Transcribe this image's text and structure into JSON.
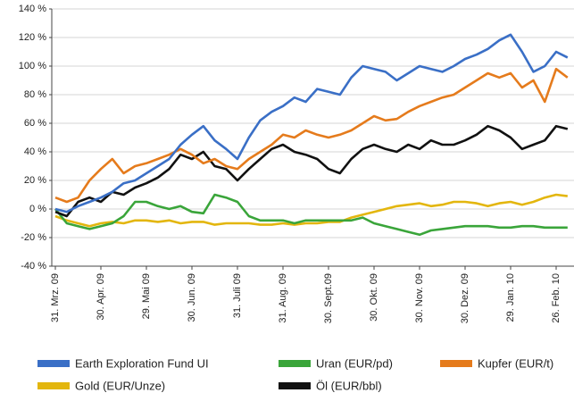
{
  "chart_data": {
    "type": "line",
    "categories": [
      "31. Mrz. 09",
      null,
      null,
      null,
      "30. Apr. 09",
      null,
      null,
      null,
      "29. Mai 09",
      null,
      null,
      null,
      "30. Jun. 09",
      null,
      null,
      null,
      "31. Juli 09",
      null,
      null,
      null,
      "31. Aug. 09",
      null,
      null,
      null,
      "30. Sept.09",
      null,
      null,
      null,
      "30. Okt. 09",
      null,
      null,
      null,
      "30. Nov. 09",
      null,
      null,
      null,
      "30. Dez. 09",
      null,
      null,
      null,
      "29. Jan. 10",
      null,
      null,
      null,
      "26. Feb. 10",
      null
    ],
    "series": [
      {
        "name": "Gold (EUR/Unze)",
        "color": "#e3b60e",
        "values": [
          -5,
          -8,
          -10,
          -12,
          -10,
          -9,
          -10,
          -8,
          -8,
          -9,
          -8,
          -10,
          -9,
          -9,
          -11,
          -10,
          -10,
          -10,
          -11,
          -11,
          -10,
          -11,
          -10,
          -10,
          -9,
          -9,
          -6,
          -4,
          -2,
          0,
          2,
          3,
          4,
          2,
          3,
          5,
          5,
          4,
          2,
          4,
          5,
          3,
          5,
          8,
          10,
          9
        ]
      },
      {
        "name": "Uran (EUR/pd)",
        "color": "#3aa53a",
        "values": [
          0,
          -10,
          -12,
          -14,
          -12,
          -10,
          -5,
          5,
          5,
          2,
          0,
          2,
          -2,
          -3,
          10,
          8,
          5,
          -5,
          -8,
          -8,
          -8,
          -10,
          -8,
          -8,
          -8,
          -8,
          -8,
          -6,
          -10,
          -12,
          -14,
          -16,
          -18,
          -15,
          -14,
          -13,
          -12,
          -12,
          -12,
          -13,
          -13,
          -12,
          -12,
          -13,
          -13,
          -13
        ]
      },
      {
        "name": "Öl (EUR/bbl)",
        "color": "#111111",
        "values": [
          -2,
          -5,
          5,
          8,
          5,
          12,
          10,
          15,
          18,
          22,
          28,
          38,
          35,
          40,
          30,
          28,
          20,
          28,
          35,
          42,
          45,
          40,
          38,
          35,
          28,
          25,
          35,
          42,
          45,
          42,
          40,
          45,
          42,
          48,
          45,
          45,
          48,
          52,
          58,
          55,
          50,
          42,
          45,
          48,
          58,
          56
        ]
      },
      {
        "name": "Kupfer (EUR/t)",
        "color": "#e57b1c",
        "values": [
          8,
          5,
          8,
          20,
          28,
          35,
          25,
          30,
          32,
          35,
          38,
          42,
          38,
          32,
          35,
          30,
          28,
          35,
          40,
          45,
          52,
          50,
          55,
          52,
          50,
          52,
          55,
          60,
          65,
          62,
          63,
          68,
          72,
          75,
          78,
          80,
          85,
          90,
          95,
          92,
          95,
          85,
          90,
          75,
          98,
          92
        ]
      },
      {
        "name": "Earth Exploration Fund UI",
        "color": "#3a6fc6",
        "values": [
          0,
          -2,
          2,
          5,
          8,
          12,
          18,
          20,
          25,
          30,
          35,
          45,
          52,
          58,
          48,
          42,
          35,
          50,
          62,
          68,
          72,
          78,
          75,
          84,
          82,
          80,
          92,
          100,
          98,
          96,
          90,
          95,
          100,
          98,
          96,
          100,
          105,
          108,
          112,
          118,
          122,
          110,
          96,
          100,
          110,
          106
        ]
      }
    ],
    "legend_order": [
      4,
      1,
      3,
      0,
      2
    ],
    "ylim": [
      -40,
      140
    ],
    "yticks": [
      {
        "value": -40,
        "label": "-40 %"
      },
      {
        "value": -20,
        "label": "-20 %"
      },
      {
        "value": 0,
        "label": "0 %"
      },
      {
        "value": 20,
        "label": "20 %"
      },
      {
        "value": 40,
        "label": "40 %"
      },
      {
        "value": 60,
        "label": "60 %"
      },
      {
        "value": 80,
        "label": "80 %"
      },
      {
        "value": 100,
        "label": "100 %"
      },
      {
        "value": 120,
        "label": "120 %"
      },
      {
        "value": 140,
        "label": "140 %"
      }
    ],
    "grid": true,
    "legend": "bottom"
  }
}
